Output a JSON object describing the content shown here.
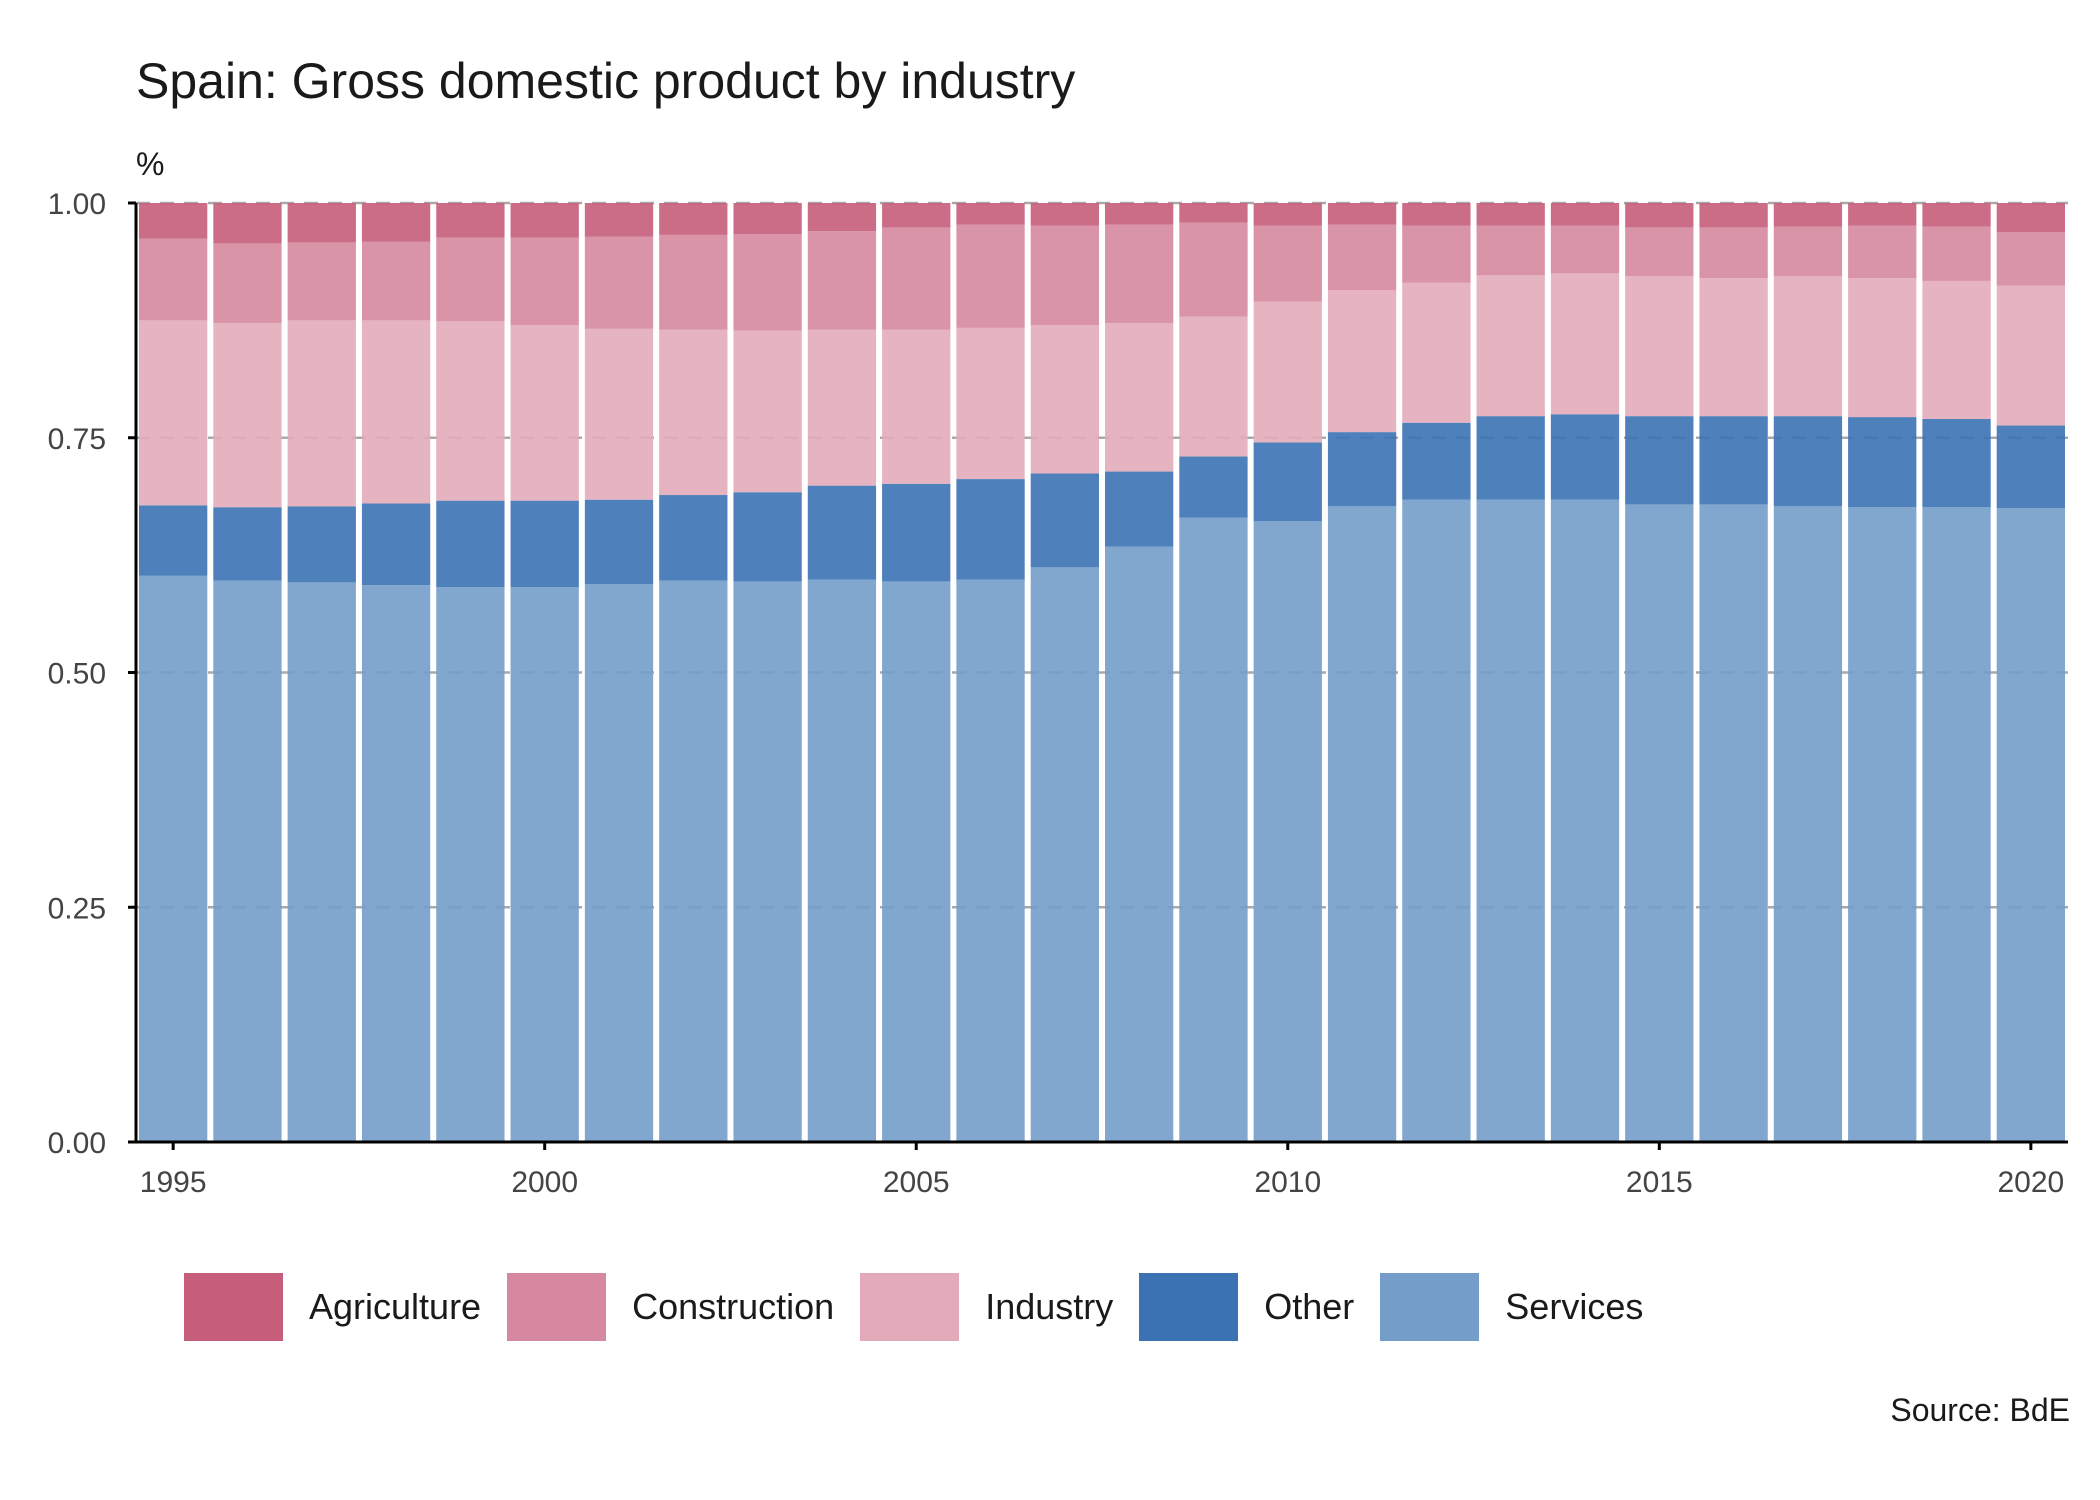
{
  "chart_data": {
    "type": "bar",
    "stacked": true,
    "title": "Spain: Gross domestic product by industry",
    "ylabel": "%",
    "source": "Source: BdE",
    "ylim": [
      0,
      1
    ],
    "yticks": [
      "0.00",
      "0.25",
      "0.50",
      "0.75",
      "1.00"
    ],
    "ytick_values": [
      0,
      0.25,
      0.5,
      0.75,
      1.0
    ],
    "xticks": [
      "1995",
      "2000",
      "2005",
      "2010",
      "2015",
      "2020"
    ],
    "grid": true,
    "legend_position": "bottom",
    "categories": [
      1995,
      1996,
      1997,
      1998,
      1999,
      2000,
      2001,
      2002,
      2003,
      2004,
      2005,
      2006,
      2007,
      2008,
      2009,
      2010,
      2011,
      2012,
      2013,
      2014,
      2015,
      2016,
      2017,
      2018,
      2019,
      2020
    ],
    "series": [
      {
        "name": "Services",
        "color": "#749dca",
        "values": [
          0.603,
          0.598,
          0.596,
          0.593,
          0.591,
          0.591,
          0.594,
          0.598,
          0.597,
          0.599,
          0.597,
          0.599,
          0.612,
          0.634,
          0.665,
          0.661,
          0.677,
          0.684,
          0.684,
          0.684,
          0.679,
          0.679,
          0.677,
          0.676,
          0.676,
          0.675
        ]
      },
      {
        "name": "Other",
        "color": "#3b72b4",
        "values": [
          0.075,
          0.078,
          0.081,
          0.087,
          0.092,
          0.092,
          0.09,
          0.091,
          0.095,
          0.1,
          0.104,
          0.107,
          0.1,
          0.08,
          0.065,
          0.084,
          0.079,
          0.082,
          0.089,
          0.091,
          0.094,
          0.094,
          0.096,
          0.096,
          0.094,
          0.088
        ]
      },
      {
        "name": "Industry",
        "color": "#e3abba",
        "values": [
          0.197,
          0.196,
          0.198,
          0.195,
          0.191,
          0.187,
          0.182,
          0.176,
          0.172,
          0.166,
          0.164,
          0.161,
          0.158,
          0.158,
          0.149,
          0.15,
          0.151,
          0.149,
          0.15,
          0.15,
          0.149,
          0.147,
          0.149,
          0.148,
          0.147,
          0.149
        ]
      },
      {
        "name": "Construction",
        "color": "#d5889f",
        "values": [
          0.087,
          0.085,
          0.083,
          0.084,
          0.089,
          0.093,
          0.098,
          0.101,
          0.103,
          0.105,
          0.109,
          0.11,
          0.106,
          0.105,
          0.1,
          0.081,
          0.07,
          0.061,
          0.053,
          0.051,
          0.052,
          0.054,
          0.053,
          0.056,
          0.058,
          0.057
        ]
      },
      {
        "name": "Agriculture",
        "color": "#c65d7b",
        "values": [
          0.038,
          0.043,
          0.042,
          0.041,
          0.037,
          0.037,
          0.036,
          0.034,
          0.033,
          0.03,
          0.026,
          0.023,
          0.024,
          0.023,
          0.021,
          0.024,
          0.023,
          0.024,
          0.024,
          0.024,
          0.026,
          0.026,
          0.025,
          0.024,
          0.025,
          0.031
        ]
      }
    ]
  }
}
